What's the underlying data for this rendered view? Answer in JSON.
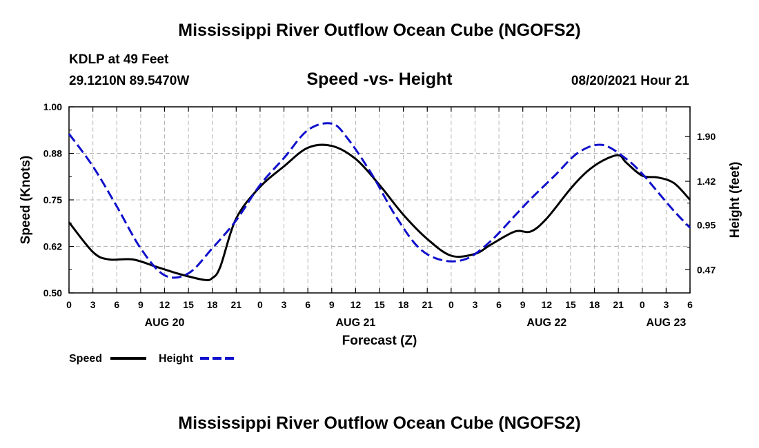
{
  "header": {
    "title": "Mississippi River Outflow Ocean Cube (NGOFS2)",
    "station": "KDLP at 49 Feet",
    "coords": "29.1210N  89.5470W",
    "subtitle": "Speed -vs- Height",
    "datetime": "08/20/2021 Hour 21"
  },
  "footer": {
    "title": "Mississippi River Outflow Ocean Cube (NGOFS2)"
  },
  "colors": {
    "speed": "#000000",
    "height": "#1010cc",
    "grid": "#b4b4b4"
  },
  "chart_data": {
    "type": "line",
    "title": "Speed -vs- Height",
    "xlabel": "Forecast (Z)",
    "ylabel_left": "Speed (Knots)",
    "ylabel_right": "Height (feet)",
    "x_unit": "hours since 00Z AUG 20",
    "xlim": [
      0,
      78
    ],
    "ylim_left": [
      0.5,
      1.0
    ],
    "ylim_right": [
      0.22,
      2.22
    ],
    "x_tick_positions": [
      0,
      3,
      6,
      9,
      12,
      15,
      18,
      21,
      24,
      27,
      30,
      33,
      36,
      39,
      42,
      45,
      48,
      51,
      54,
      57,
      60,
      63,
      66,
      69,
      72,
      75,
      78
    ],
    "x_tick_labels": [
      "0",
      "3",
      "6",
      "9",
      "12",
      "15",
      "18",
      "21",
      "0",
      "3",
      "6",
      "9",
      "12",
      "15",
      "18",
      "21",
      "0",
      "3",
      "6",
      "9",
      "12",
      "15",
      "18",
      "21",
      "0",
      "3",
      "6"
    ],
    "date_labels": [
      {
        "x": 12,
        "label": "AUG 20"
      },
      {
        "x": 36,
        "label": "AUG 21"
      },
      {
        "x": 60,
        "label": "AUG 22"
      },
      {
        "x": 75,
        "label": "AUG 23"
      }
    ],
    "y_left_ticks": [
      "1.00",
      "0.88",
      "0.75",
      "0.62",
      "0.50"
    ],
    "y_left_tick_values": [
      1.0,
      0.875,
      0.75,
      0.625,
      0.5
    ],
    "y_right_ticks": [
      "1.90",
      "1.42",
      "0.95",
      "0.47"
    ],
    "y_right_tick_values": [
      1.9,
      1.42,
      0.95,
      0.47
    ],
    "grid": true,
    "legend_position": "bottom-left",
    "series": [
      {
        "name": "Speed",
        "axis": "left",
        "style": "solid",
        "x": [
          0,
          3,
          5,
          8,
          11,
          14,
          17,
          18,
          19,
          21,
          24,
          27,
          30,
          33,
          36,
          39,
          42,
          45,
          48,
          51,
          53,
          56,
          58,
          60,
          63,
          65,
          67,
          69,
          70,
          72,
          74,
          76,
          78
        ],
        "y": [
          0.69,
          0.61,
          0.59,
          0.59,
          0.57,
          0.55,
          0.535,
          0.54,
          0.57,
          0.7,
          0.785,
          0.84,
          0.89,
          0.895,
          0.86,
          0.79,
          0.71,
          0.645,
          0.6,
          0.605,
          0.63,
          0.665,
          0.665,
          0.7,
          0.78,
          0.825,
          0.855,
          0.87,
          0.85,
          0.815,
          0.81,
          0.795,
          0.75
        ]
      },
      {
        "name": "Height",
        "axis": "right",
        "style": "dashed",
        "x": [
          0,
          3,
          6,
          9,
          12,
          15,
          18,
          21,
          24,
          27,
          30,
          33,
          35,
          38,
          41,
          44,
          47,
          50,
          53,
          56,
          58,
          61,
          64,
          67,
          70,
          72,
          74,
          76,
          78
        ],
        "y": [
          1.93,
          1.58,
          1.15,
          0.7,
          0.41,
          0.43,
          0.7,
          1.0,
          1.38,
          1.67,
          1.97,
          2.04,
          1.88,
          1.5,
          1.05,
          0.7,
          0.57,
          0.59,
          0.78,
          1.05,
          1.23,
          1.48,
          1.73,
          1.81,
          1.66,
          1.5,
          1.3,
          1.1,
          0.92
        ]
      }
    ]
  },
  "legend": {
    "speed_label": "Speed",
    "height_label": "Height"
  }
}
